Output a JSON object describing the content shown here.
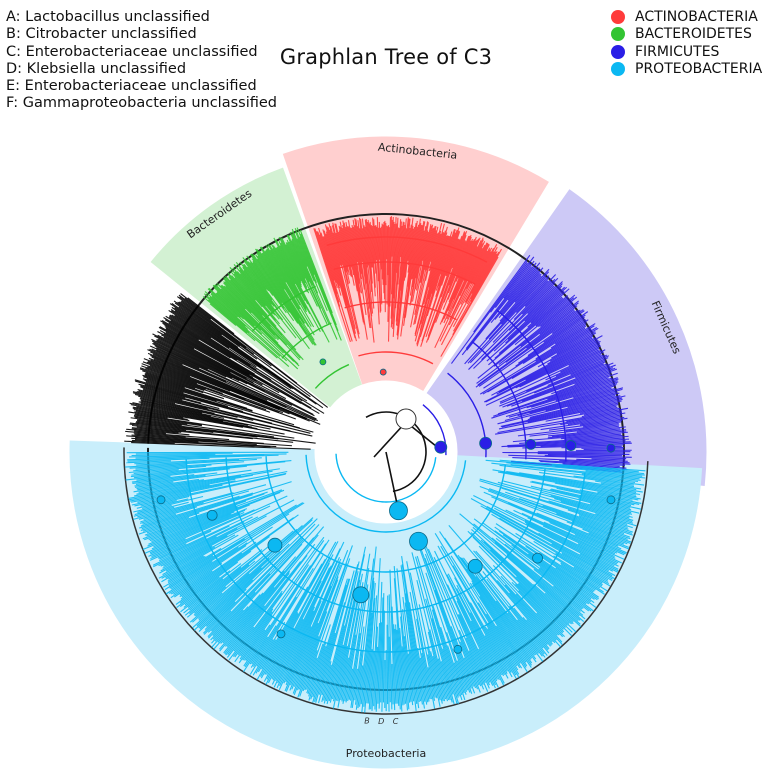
{
  "title": "Graphlan Tree of C3",
  "key": [
    {
      "letter": "A",
      "text": "A: Lactobacillus unclassified"
    },
    {
      "letter": "B",
      "text": "B: Citrobacter unclassified"
    },
    {
      "letter": "C",
      "text": "C: Enterobacteriaceae unclassified"
    },
    {
      "letter": "D",
      "text": "D: Klebsiella unclassified"
    },
    {
      "letter": "E",
      "text": "E: Enterobacteriaceae unclassified"
    },
    {
      "letter": "F",
      "text": "F: Gammaproteobacteria unclassified"
    }
  ],
  "legend": [
    {
      "label": "ACTINOBACTERIA",
      "color": "#ff3b3b"
    },
    {
      "label": "BACTEROIDETES",
      "color": "#33c433"
    },
    {
      "label": "FIRMICUTES",
      "color": "#2a1ee6"
    },
    {
      "label": "PROTEOBACTERIA",
      "color": "#0bb8f2"
    }
  ],
  "clades": [
    {
      "name": "Actinobacteria",
      "color": "#ff3b3b",
      "shade": "#ffcfcf"
    },
    {
      "name": "Bacteroidetes",
      "color": "#33c433",
      "shade": "#d3f1d3"
    },
    {
      "name": "Firmicutes",
      "color": "#2a1ee6",
      "shade": "#cdc9f6"
    },
    {
      "name": "Proteobacteria",
      "color": "#0bb8f2",
      "shade": "#c9eefb"
    }
  ],
  "leaf_markers": [
    "B",
    "D",
    "C"
  ],
  "unclassified_color": "#000000"
}
